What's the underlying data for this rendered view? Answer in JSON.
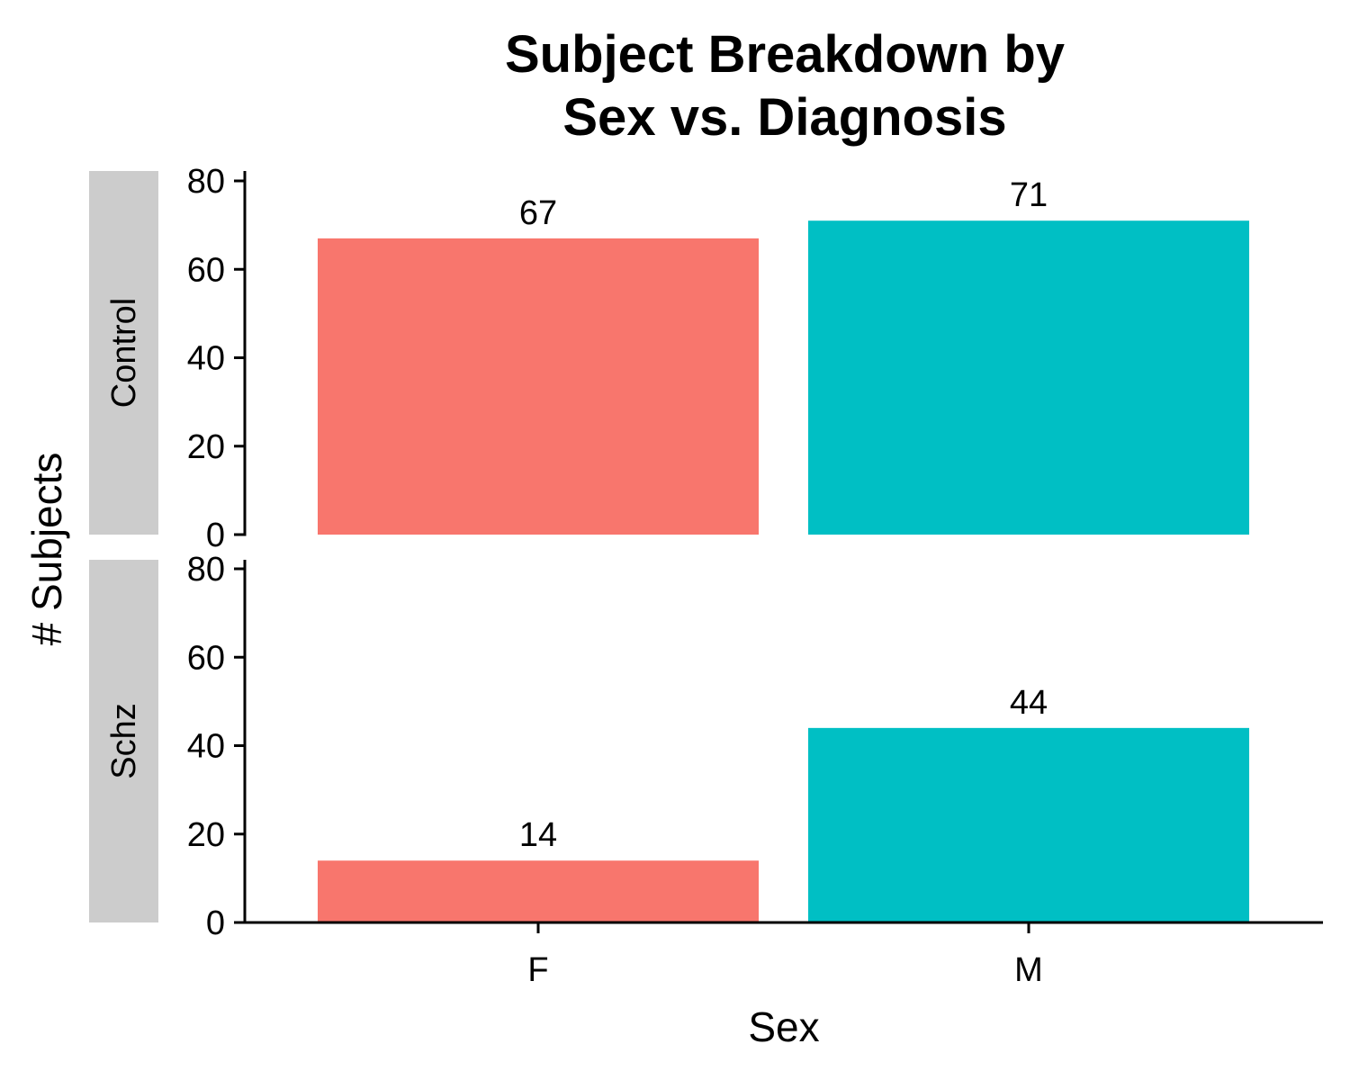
{
  "chart_data": {
    "type": "bar",
    "title": "Subject Breakdown by\nSex vs. Diagnosis",
    "xlabel": "Sex",
    "ylabel": "# Subjects",
    "categories": [
      "F",
      "M"
    ],
    "ylim": [
      0,
      80
    ],
    "yticks": [
      0,
      20,
      40,
      60,
      80
    ],
    "grid": false,
    "legend": "none",
    "colors": {
      "F": "#F8766D",
      "M": "#00BFC4"
    },
    "strip_color": "#CCCCCC",
    "facets": [
      {
        "label": "Control",
        "values": [
          67,
          71
        ],
        "data_labels": [
          "67",
          "71"
        ]
      },
      {
        "label": "Schz",
        "values": [
          14,
          44
        ],
        "data_labels": [
          "14",
          "44"
        ]
      }
    ]
  }
}
